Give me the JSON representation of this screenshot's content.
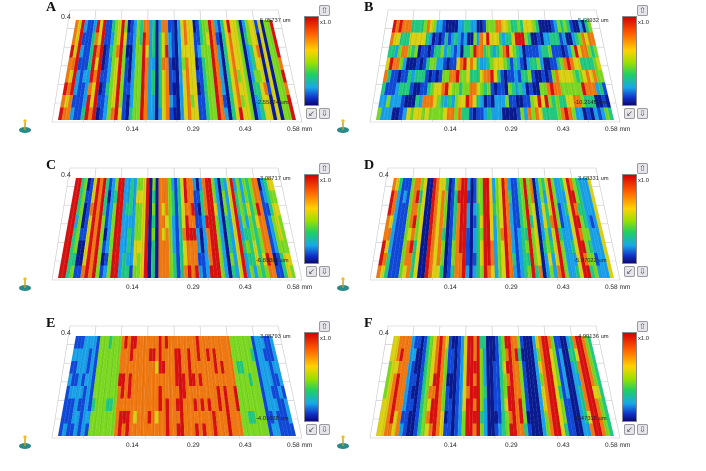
{
  "panels": [
    {
      "letter": "A",
      "ylabel": "0.4",
      "xticks": [
        "0.14",
        "0.29",
        "0.43",
        "0.58 mm"
      ],
      "scale_top": "5.05737 um",
      "scale_bottom": "-2.55824 um",
      "scale_mult": "x1.0"
    },
    {
      "letter": "B",
      "ylabel": "",
      "xticks": [
        "0.14",
        "0.29",
        "0.43",
        "0.58 mm"
      ],
      "scale_top": "5.68932 um",
      "scale_bottom": "-10.2145 um",
      "scale_mult": "x1.0"
    },
    {
      "letter": "C",
      "ylabel": "0.4",
      "xticks": [
        "0.14",
        "0.29",
        "0.43",
        "0.58 mm"
      ],
      "scale_top": "3.08717 um",
      "scale_bottom": "-6.83884 um",
      "scale_mult": "x1.0"
    },
    {
      "letter": "D",
      "ylabel": "0.4",
      "xticks": [
        "0.14",
        "0.29",
        "0.43",
        "0.58 mm"
      ],
      "scale_top": "3.68331 um",
      "scale_bottom": "-5.97022 um",
      "scale_mult": "x1.0"
    },
    {
      "letter": "E",
      "ylabel": "0.4",
      "xticks": [
        "0.14",
        "0.29",
        "0.43",
        "0.58 mm"
      ],
      "scale_top": "3.08793 um",
      "scale_bottom": "-4.01668 um",
      "scale_mult": "x1.0"
    },
    {
      "letter": "F",
      "ylabel": "0.4",
      "xticks": [
        "0.14",
        "0.29",
        "0.43",
        "0.58 mm"
      ],
      "scale_top": "4.90136 um",
      "scale_bottom": "-9.47315 um",
      "scale_mult": "x1.0"
    }
  ],
  "surface_palette": [
    "#0a1a90",
    "#1048d8",
    "#18a0e8",
    "#20c880",
    "#7ad820",
    "#d8d010",
    "#f07810",
    "#d81010"
  ],
  "icons": {
    "up": "arrow-up-icon",
    "down": "arrow-down-icon",
    "rotate": "rotate-view-icon",
    "axis": "axis-gizmo-icon"
  }
}
